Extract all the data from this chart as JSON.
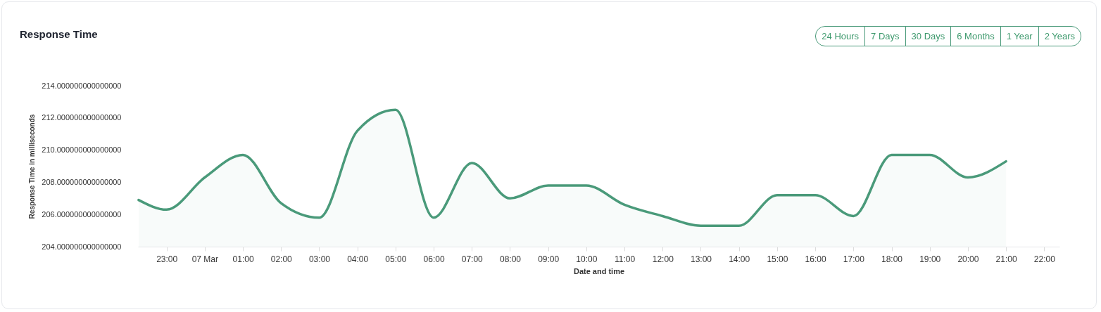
{
  "chart_data": {
    "type": "area",
    "title": "Response Time",
    "xlabel": "Date and time",
    "ylabel": "Response Time in milliseconds",
    "annotations": [
      "24 Hours",
      "7 Days",
      "30 Days",
      "6 Months",
      "1 Year",
      "2 Years"
    ],
    "x": [
      "--03-06T22:16",
      "--03-06T23:00",
      "--03-07T00:00",
      "--03-07T01:00",
      "--03-07T02:00",
      "--03-07T03:00",
      "--03-07T04:00",
      "--03-07T05:00",
      "--03-07T06:00",
      "--03-07T07:00",
      "--03-07T08:00",
      "--03-07T09:00",
      "--03-07T10:00",
      "--03-07T11:00",
      "--03-07T12:00",
      "--03-07T13:00",
      "--03-07T14:00",
      "--03-07T15:00",
      "--03-07T16:00",
      "--03-07T17:00",
      "--03-07T18:00",
      "--03-07T19:00",
      "--03-07T20:00",
      "--03-07T21:00"
    ],
    "series": [
      {
        "color": "#4a9a7a",
        "values": [
          206.9,
          206.3,
          208.3,
          209.7,
          206.7,
          205.8,
          211.2,
          212.5,
          205.8,
          209.2,
          207.0,
          207.8,
          207.8,
          206.6,
          205.9,
          205.3,
          205.3,
          207.2,
          207.2,
          205.9,
          209.7,
          209.7,
          208.3,
          209.3
        ]
      }
    ],
    "xlim": [
      "--03-06T22:15",
      "--03-07T22:24"
    ],
    "xticks": [
      {
        "value": "--03-06T23:00",
        "label": "23:00"
      },
      {
        "value": "--03-07T00:00",
        "label": "07 Mar"
      },
      {
        "value": "--03-07T01:00",
        "label": "01:00"
      },
      {
        "value": "--03-07T02:00",
        "label": "02:00"
      },
      {
        "value": "--03-07T03:00",
        "label": "03:00"
      },
      {
        "value": "--03-07T04:00",
        "label": "04:00"
      },
      {
        "value": "--03-07T05:00",
        "label": "05:00"
      },
      {
        "value": "--03-07T06:00",
        "label": "06:00"
      },
      {
        "value": "--03-07T07:00",
        "label": "07:00"
      },
      {
        "value": "--03-07T08:00",
        "label": "08:00"
      },
      {
        "value": "--03-07T09:00",
        "label": "09:00"
      },
      {
        "value": "--03-07T10:00",
        "label": "10:00"
      },
      {
        "value": "--03-07T11:00",
        "label": "11:00"
      },
      {
        "value": "--03-07T12:00",
        "label": "12:00"
      },
      {
        "value": "--03-07T13:00",
        "label": "13:00"
      },
      {
        "value": "--03-07T14:00",
        "label": "14:00"
      },
      {
        "value": "--03-07T15:00",
        "label": "15:00"
      },
      {
        "value": "--03-07T16:00",
        "label": "16:00"
      },
      {
        "value": "--03-07T17:00",
        "label": "17:00"
      },
      {
        "value": "--03-07T18:00",
        "label": "18:00"
      },
      {
        "value": "--03-07T19:00",
        "label": "19:00"
      },
      {
        "value": "--03-07T20:00",
        "label": "20:00"
      },
      {
        "value": "--03-07T21:00",
        "label": "21:00"
      },
      {
        "value": "--03-07T22:00",
        "label": "22:00"
      }
    ],
    "ylim": [
      204,
      214
    ],
    "yticks": [
      {
        "value": 204,
        "label": "204.000000000000000"
      },
      {
        "value": 206,
        "label": "206.000000000000000"
      },
      {
        "value": 208,
        "label": "208.000000000000000"
      },
      {
        "value": 210,
        "label": "210.000000000000000"
      },
      {
        "value": 212,
        "label": "212.000000000000000"
      },
      {
        "value": 214,
        "label": "214.000000000000000"
      }
    ],
    "grid": false
  }
}
